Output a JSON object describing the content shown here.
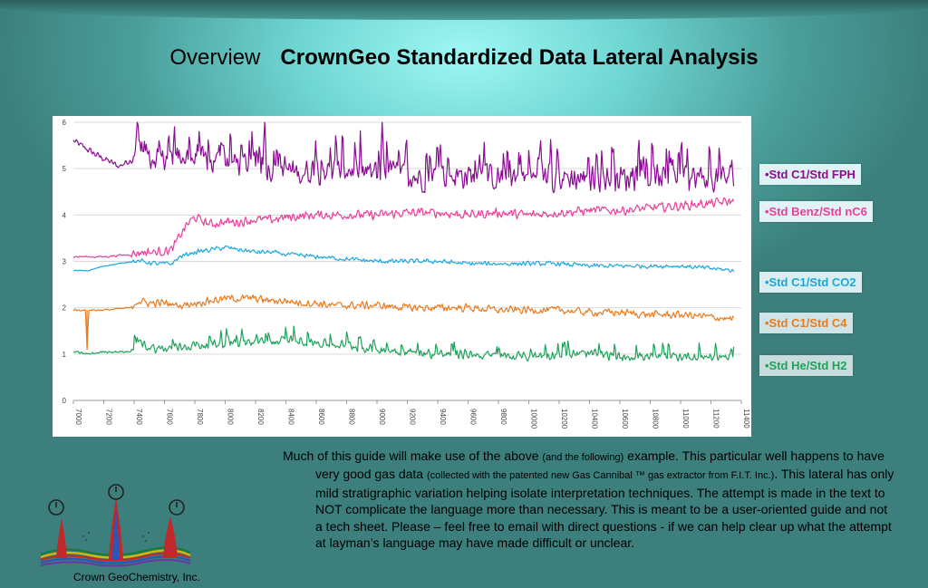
{
  "header": {
    "overview": "Overview",
    "title": "CrownGeo Standardized Data Lateral Analysis"
  },
  "chart_data": {
    "type": "line",
    "x_ticks": [
      "7000",
      "7200",
      "7400",
      "7600",
      "7800",
      "8000",
      "8200",
      "8400",
      "8600",
      "8800",
      "9000",
      "9200",
      "9400",
      "9600",
      "9800",
      "10000",
      "10200",
      "10400",
      "10600",
      "10800",
      "11000",
      "11200",
      "11400"
    ],
    "y_ticks": [
      "0",
      "1",
      "2",
      "3",
      "4",
      "5",
      "6"
    ],
    "xlim": [
      7000,
      11400
    ],
    "ylim": [
      0,
      6
    ],
    "grid": "horizontal",
    "legend_position": "right",
    "series": [
      {
        "name": "•Std C1/Std FPH",
        "color": "#8b0c93",
        "x": [
          7000,
          7150,
          7300,
          7380,
          7420,
          7500,
          7600,
          7700,
          7800,
          7900,
          8000,
          8100,
          8200,
          8300,
          8400,
          8500,
          8600,
          8700,
          8800,
          8900,
          9000,
          9100,
          9200,
          9300,
          9400,
          9500,
          9600,
          9700,
          9800,
          9900,
          10000,
          10100,
          10200,
          10300,
          10400,
          10500,
          10600,
          10700,
          10800,
          10900,
          11000,
          11100,
          11200,
          11350
        ],
        "y": [
          5.6,
          5.3,
          5.05,
          5.2,
          5.6,
          5.3,
          5.2,
          5.3,
          5.2,
          5.1,
          5.2,
          5.1,
          5.1,
          5.0,
          5.0,
          4.9,
          5.0,
          4.95,
          5.0,
          4.9,
          4.9,
          4.9,
          4.85,
          4.8,
          4.9,
          4.85,
          4.85,
          4.8,
          4.8,
          4.85,
          4.8,
          4.8,
          4.8,
          4.8,
          4.8,
          4.8,
          4.8,
          4.8,
          4.8,
          4.8,
          4.8,
          4.8,
          4.8,
          4.8
        ],
        "noise": 0.35
      },
      {
        "name": "•Std Benz/Std nC6",
        "color": "#e8409a",
        "x": [
          7000,
          7200,
          7380,
          7450,
          7550,
          7650,
          7700,
          7750,
          7800,
          7900,
          8000,
          8100,
          8200,
          8300,
          8400,
          8600,
          8800,
          9000,
          9200,
          9400,
          9600,
          9800,
          10000,
          10200,
          10400,
          10600,
          10800,
          11000,
          11200,
          11350
        ],
        "y": [
          3.1,
          3.1,
          3.15,
          3.2,
          3.2,
          3.25,
          3.55,
          3.8,
          3.95,
          3.8,
          3.85,
          3.85,
          3.9,
          3.9,
          3.95,
          4.0,
          4.0,
          4.0,
          4.05,
          4.05,
          4.0,
          4.05,
          4.0,
          4.05,
          4.1,
          4.1,
          4.15,
          4.2,
          4.25,
          4.3
        ],
        "noise": 0.12
      },
      {
        "name": "•Std C1/Std CO2",
        "color": "#1ea7dc",
        "x": [
          7000,
          7100,
          7200,
          7300,
          7380,
          7450,
          7550,
          7650,
          7700,
          7800,
          7900,
          8000,
          8100,
          8200,
          8300,
          8400,
          8600,
          8800,
          9000,
          9200,
          9400,
          9600,
          9800,
          10000,
          10200,
          10400,
          10600,
          10800,
          11000,
          11200,
          11350
        ],
        "y": [
          2.8,
          2.8,
          2.9,
          2.95,
          3.0,
          3.0,
          2.95,
          2.95,
          3.1,
          3.2,
          3.25,
          3.3,
          3.25,
          3.2,
          3.2,
          3.15,
          3.1,
          3.05,
          3.0,
          3.0,
          3.0,
          2.95,
          2.95,
          2.95,
          2.95,
          2.9,
          2.9,
          2.9,
          2.9,
          2.85,
          2.8
        ],
        "noise": 0.06
      },
      {
        "name": "•Std C1/Std C4",
        "color": "#e87b1e",
        "x": [
          7000,
          7080,
          7090,
          7100,
          7200,
          7380,
          7420,
          7500,
          7600,
          7700,
          7800,
          7900,
          8000,
          8100,
          8200,
          8300,
          8400,
          8500,
          8600,
          8700,
          8800,
          9000,
          9200,
          9400,
          9600,
          9800,
          10000,
          10200,
          10400,
          10600,
          10800,
          11000,
          11200,
          11350
        ],
        "y": [
          1.95,
          1.95,
          1.1,
          1.95,
          1.95,
          2.0,
          2.15,
          2.1,
          2.1,
          2.05,
          2.1,
          2.15,
          2.2,
          2.2,
          2.2,
          2.15,
          2.15,
          2.1,
          2.1,
          2.05,
          2.05,
          2.05,
          2.0,
          2.0,
          2.0,
          1.95,
          1.95,
          1.95,
          1.9,
          1.9,
          1.85,
          1.85,
          1.8,
          1.75
        ],
        "noise": 0.1
      },
      {
        "name": "•Std He/Std H2",
        "color": "#1fa35a",
        "x": [
          7000,
          7100,
          7200,
          7380,
          7420,
          7500,
          7600,
          7700,
          7800,
          7900,
          8000,
          8100,
          8200,
          8300,
          8400,
          8500,
          8600,
          8700,
          8800,
          9000,
          9200,
          9400,
          9600,
          9800,
          10000,
          10200,
          10400,
          10600,
          10800,
          11000,
          11200,
          11350
        ],
        "y": [
          1.05,
          1.0,
          1.05,
          1.05,
          1.3,
          1.15,
          1.1,
          1.15,
          1.2,
          1.2,
          1.25,
          1.25,
          1.25,
          1.25,
          1.3,
          1.3,
          1.25,
          1.2,
          1.2,
          1.1,
          1.05,
          1.0,
          1.0,
          0.95,
          0.95,
          1.0,
          1.0,
          0.95,
          0.95,
          0.95,
          0.95,
          0.95
        ],
        "noise": 0.12
      }
    ]
  },
  "body": {
    "p1_a": "Much of this guide will make use of the above ",
    "p1_small1": "(and the following)",
    "p1_b": " example. This particular well happens to have very good gas data ",
    "p1_small2": "(collected with the patented new Gas Cannibal ™ gas extractor from F.I.T. Inc.)",
    "p1_c": ". This lateral has only mild stratigraphic variation helping isolate interpretation techniques.  The attempt is made in the text to NOT complicate the language more than necessary. This is meant to be a user-oriented guide and not a tech sheet. Please – feel free to email with direct questions - if we can help clear up what the attempt at layman’s language may have made difficult or unclear."
  },
  "footer": {
    "company": "Crown GeoChemistry, Inc."
  }
}
